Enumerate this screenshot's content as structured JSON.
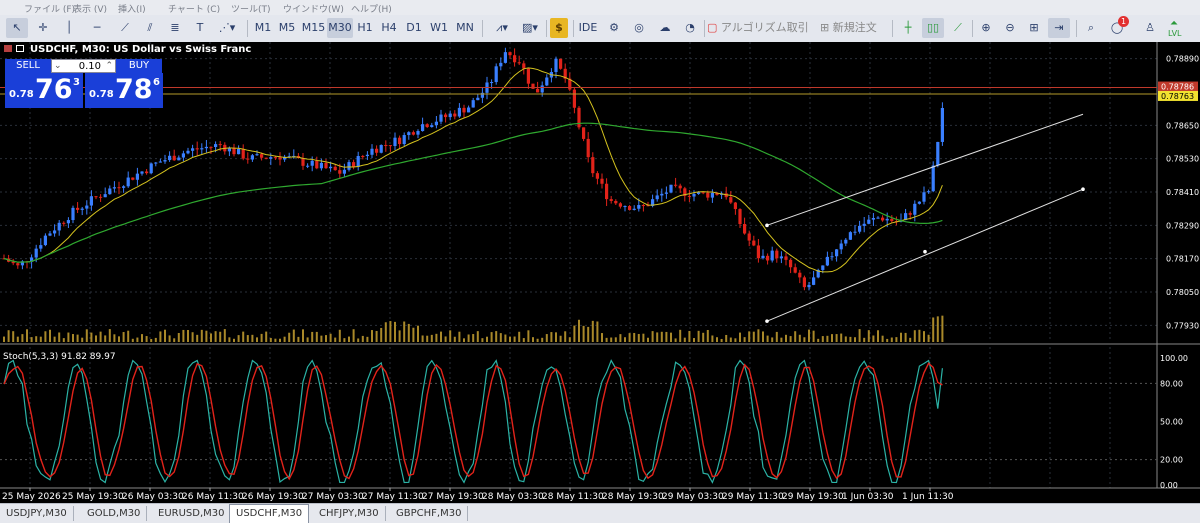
{
  "menu": [
    "ファイル (F)",
    "表示 (V)",
    "挿入(I)",
    "チャート (C)",
    "ツール(T)",
    "ウインドウ(W)",
    "ヘルプ(H)"
  ],
  "timeframes": [
    "M1",
    "M5",
    "M15",
    "M30",
    "H1",
    "H4",
    "D1",
    "W1",
    "MN"
  ],
  "active_timeframe": "M30",
  "toolbar": {
    "ide_label": "IDE",
    "algo_label": "アルゴリズム取引",
    "new_order_label": "新規注文",
    "lvl_label": "LVL",
    "notification_count": "1"
  },
  "chart": {
    "title": "USDCHF, M30:  US Dollar vs Swiss Franc",
    "sell_label": "SELL",
    "buy_label": "BUY",
    "lot": "0.10",
    "sell_price": {
      "prefix": "0.78",
      "big": "76",
      "sup": "3"
    },
    "buy_price": {
      "prefix": "0.78",
      "big": "78",
      "sup": "6"
    },
    "y_ticks": [
      "0.78890",
      "0.78650",
      "0.78530",
      "0.78410",
      "0.78290",
      "0.78170",
      "0.78050",
      "0.77930"
    ],
    "bid_price": "0.78763",
    "ask_price": "0.78786",
    "x_ticks": [
      "25 May 2026",
      "25 May 19:30",
      "26 May 03:30",
      "26 May 11:30",
      "26 May 19:30",
      "27 May 03:30",
      "27 May 11:30",
      "27 May 19:30",
      "28 May 03:30",
      "28 May 11:30",
      "28 May 19:30",
      "29 May 03:30",
      "29 May 11:30",
      "29 May 19:30",
      "1 Jun 03:30",
      "1 Jun 11:30"
    ],
    "stoch_label": "Stoch(5,3,3) 91.82 89.97",
    "stoch_ticks": [
      "100.00",
      "80.00",
      "50.00",
      "20.00",
      "0.00"
    ],
    "colors": {
      "bull": "#3a7fff",
      "bear": "#e2231a",
      "ma_fast": "#d4c21e",
      "ma_slow": "#2fa82f",
      "volume": "#a9892a",
      "stoch_main": "#2bb3a6",
      "stoch_signal": "#e2231a"
    }
  },
  "tabs": [
    "USDJPY,M30",
    "GOLD,M30",
    "EURUSD,M30",
    "USDCHF,M30",
    "CHFJPY,M30",
    "GBPCHF,M30"
  ],
  "active_tab": "USDCHF,M30"
}
